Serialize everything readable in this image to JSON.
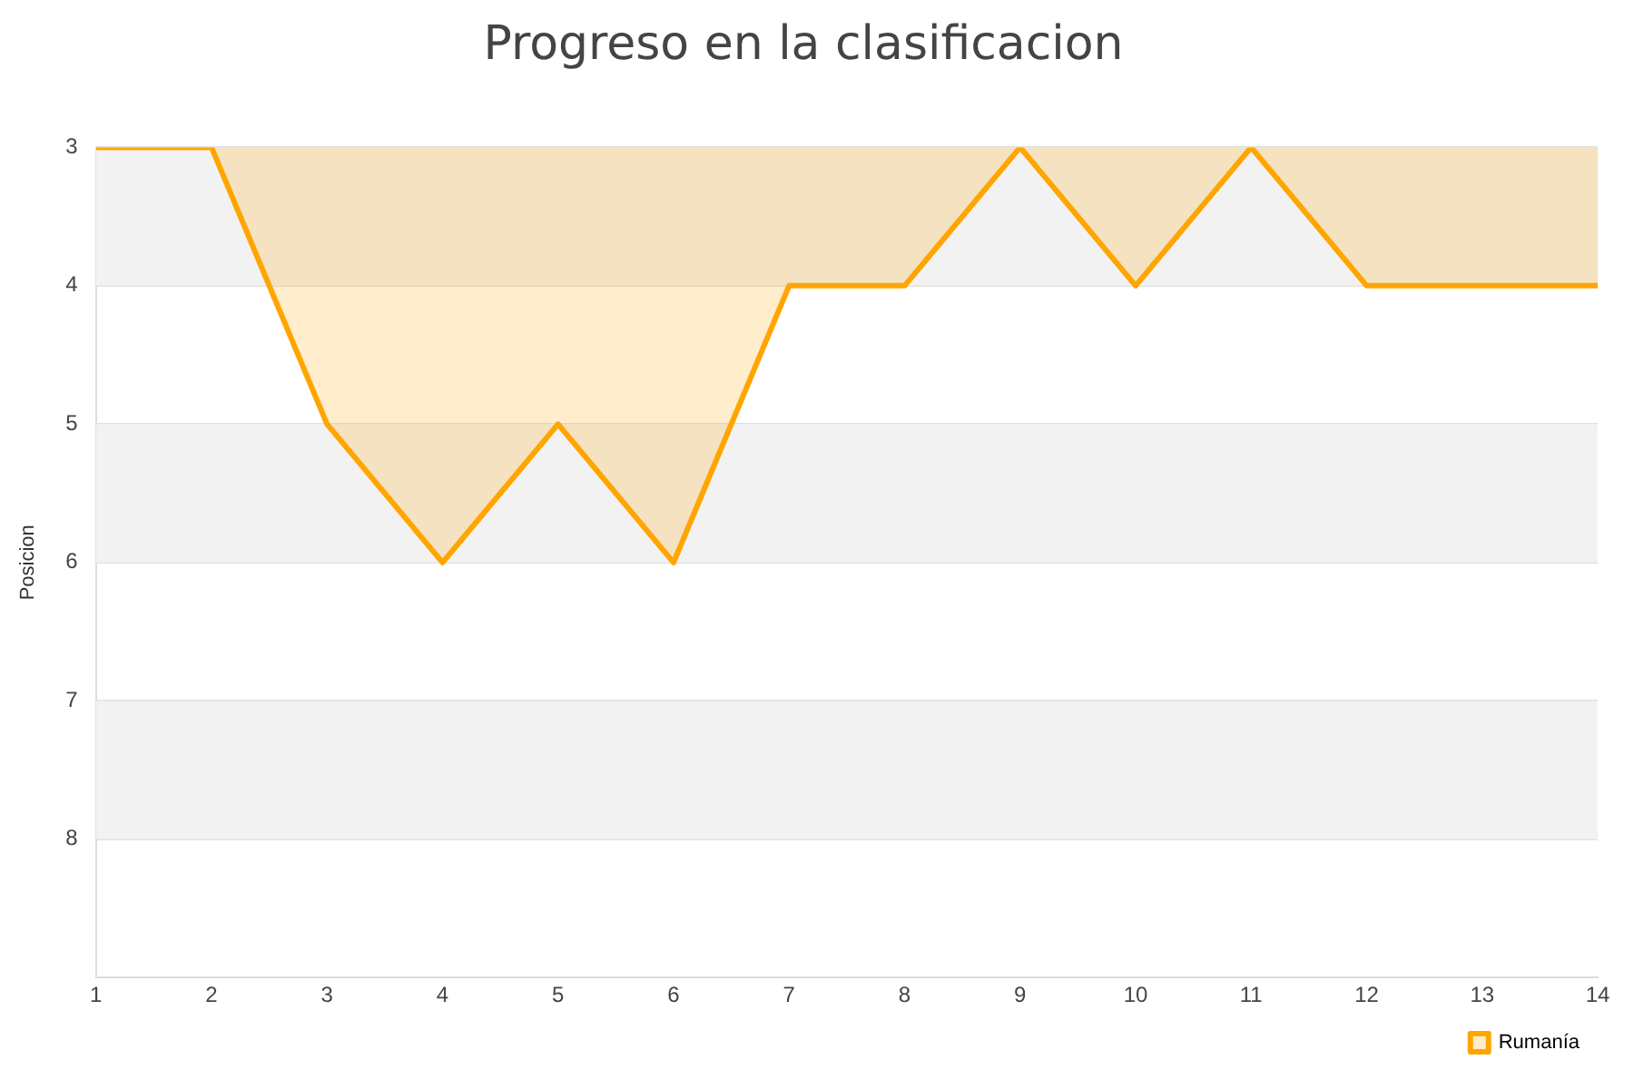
{
  "chart_data": {
    "type": "area",
    "title": "Progreso en la clasificacion",
    "ylabel": "Posicion",
    "x": [
      1,
      2,
      3,
      4,
      5,
      6,
      7,
      8,
      9,
      10,
      11,
      12,
      13,
      14
    ],
    "series": [
      {
        "name": "Rumanía",
        "color": "#ffa500",
        "values": [
          3,
          3,
          5,
          6,
          5,
          6,
          4,
          4,
          3,
          4,
          3,
          4,
          4,
          4
        ]
      }
    ],
    "xlim": [
      1,
      14
    ],
    "xticks": [
      1,
      2,
      3,
      4,
      5,
      6,
      7,
      8,
      9,
      10,
      11,
      12,
      13,
      14
    ],
    "ylim": [
      9,
      3
    ],
    "yticks": [
      3,
      4,
      5,
      6,
      7,
      8
    ],
    "bands": [
      {
        "axis": "y",
        "from": 3,
        "to": 4,
        "color": "#f2f2f2"
      },
      {
        "axis": "y",
        "from": 5,
        "to": 6,
        "color": "#f2f2f2"
      },
      {
        "axis": "y",
        "from": 7,
        "to": 8,
        "color": "#f2f2f2"
      }
    ],
    "grid": "y",
    "legend": "bottom right",
    "marker": "none",
    "line_style": "solid"
  }
}
